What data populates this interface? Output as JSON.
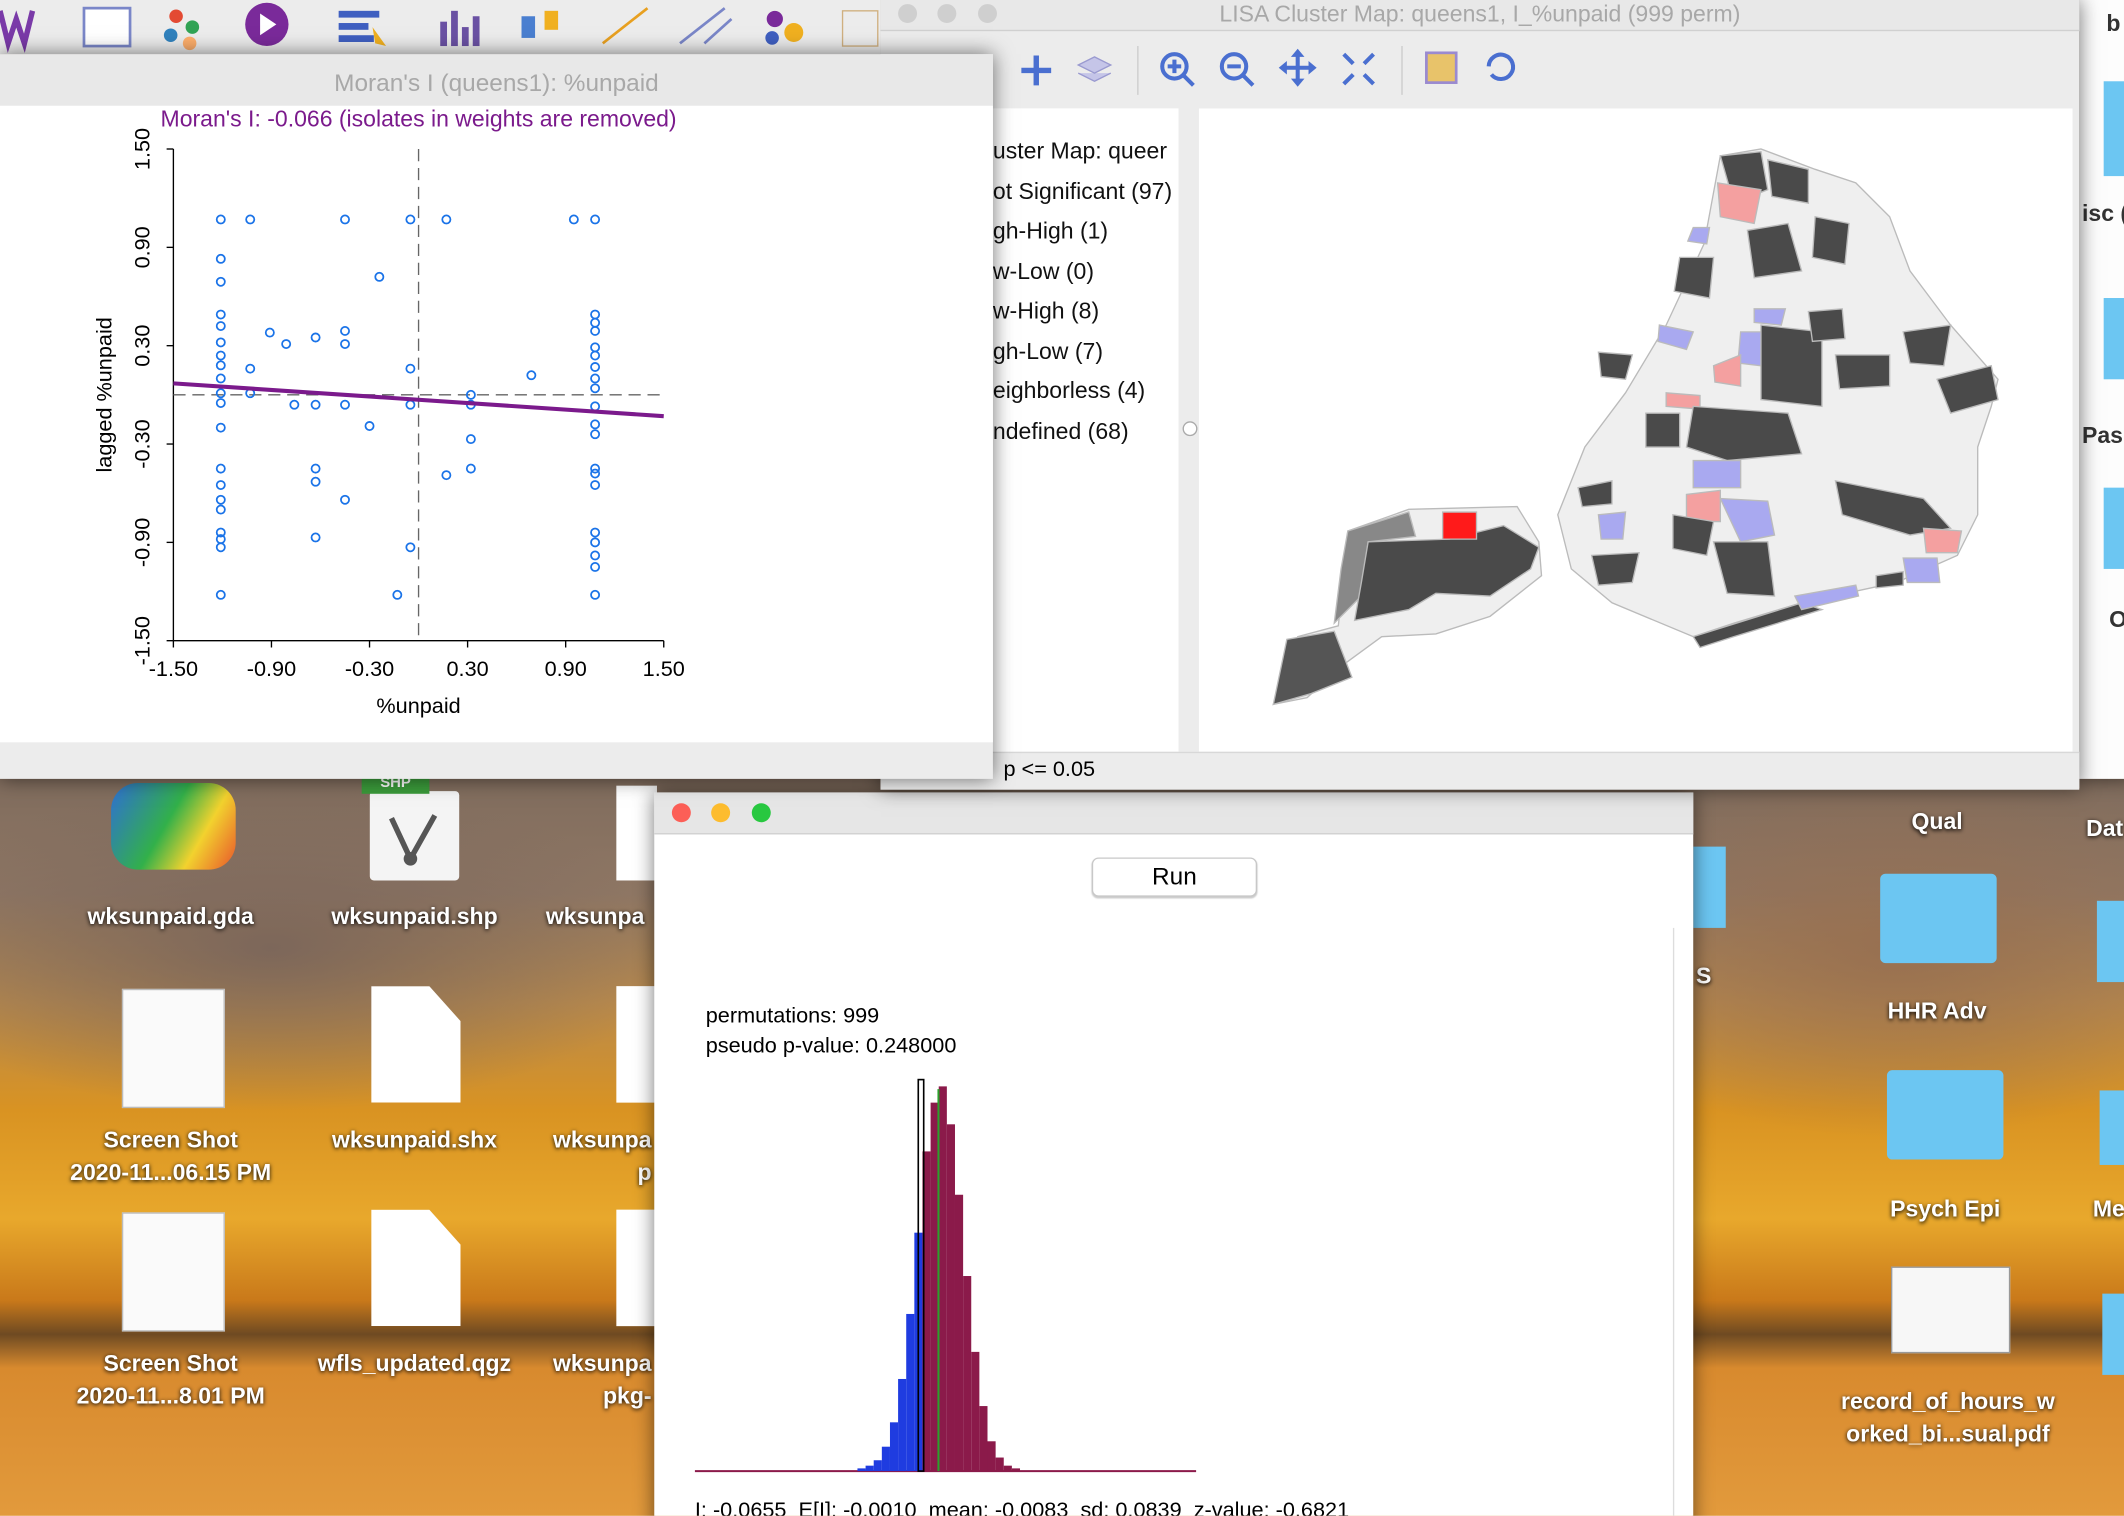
{
  "moran_window": {
    "title": "Moran's I (queens1): %unpaid"
  },
  "lisa_window": {
    "title": "LISA Cluster Map: queens1, I_%unpaid (999 perm)",
    "legend": [
      "uster Map: queer",
      "ot Significant (97)",
      "gh-High (1)",
      "w-Low (0)",
      "w-High (8)",
      "gh-Low (7)",
      "eighborless (4)",
      "ndefined (68)"
    ],
    "status": "5  p <= 0.05"
  },
  "histogram_window": {
    "button": "Run",
    "permutations": "permutations: 999",
    "p_value": "pseudo p-value: 0.248000",
    "stats": "I: -0.0655  E[I]: -0.0010  mean: -0.0083  sd: 0.0839  z-value: -0.6821"
  },
  "desktop": {
    "icons": [
      "wksunpaid.gda",
      "wksunpaid.shp",
      "wksunpa",
      "Screen Shot\n2020-11...06.15 PM",
      "wksunpaid.shx",
      "wksunpa\np",
      "Screen Shot\n2020-11...8.01 PM",
      "wfls_updated.qgz",
      "wksunpa\npkg-"
    ],
    "shp_badge": "SHP",
    "right_icons": [
      "Qual",
      "HHR Adv",
      "Psych Epi",
      "record_of_hours_w\norked_bi...sual.pdf",
      "Dat",
      "Me",
      "S"
    ],
    "side_window": [
      "b",
      "isc (",
      "Pas",
      "O"
    ]
  },
  "chart_data": [
    {
      "type": "scatter",
      "title": "Moran's I: -0.066 (isolates in weights are removed)",
      "x_label": "%unpaid",
      "y_label": "lagged %unpaid",
      "xlim": [
        -1.5,
        1.5
      ],
      "ylim": [
        -1.5,
        1.5
      ],
      "xticks": [
        {
          "value": -1.5,
          "label": "-1.50"
        },
        {
          "value": -0.9,
          "label": "-0.90"
        },
        {
          "value": -0.3,
          "label": "-0.30"
        },
        {
          "value": 0.3,
          "label": "0.30"
        },
        {
          "value": 0.9,
          "label": "0.90"
        },
        {
          "value": 1.5,
          "label": "1.50"
        }
      ],
      "yticks": [
        {
          "value": -1.5,
          "label": "-1.50"
        },
        {
          "value": -0.9,
          "label": "-0.90"
        },
        {
          "value": -0.3,
          "label": "-0.30"
        },
        {
          "value": 0.3,
          "label": "0.30"
        },
        {
          "value": 0.9,
          "label": "0.90"
        },
        {
          "value": 1.5,
          "label": "1.50"
        }
      ],
      "color": "#1a73e8",
      "x": [
        -1.21,
        -1.03,
        -0.45,
        -0.05,
        0.17,
        0.95,
        1.08,
        -1.21,
        -1.21,
        -0.24,
        -1.21,
        -1.21,
        -1.21,
        -1.21,
        -1.21,
        -1.21,
        -1.21,
        -1.21,
        -1.21,
        -0.91,
        -0.81,
        -0.63,
        -0.45,
        -0.45,
        -1.03,
        -0.05,
        0.69,
        1.08,
        1.08,
        1.08,
        1.08,
        1.08,
        1.08,
        1.08,
        1.08,
        1.08,
        1.08,
        1.08,
        1.08,
        1.08,
        1.08,
        1.08,
        1.08,
        1.08,
        1.08,
        1.08,
        -0.76,
        -0.63,
        -0.45,
        -0.05,
        0.32,
        0.32,
        -0.3,
        0.32,
        0.32,
        0.17,
        -0.63,
        -0.63,
        -0.45,
        -0.63,
        -1.21,
        -1.21,
        -1.21,
        -1.21,
        -1.21,
        -1.21,
        -1.21,
        -1.21,
        -0.05,
        -0.13,
        -1.03
      ],
      "values": [
        1.07,
        1.07,
        1.07,
        1.07,
        1.07,
        1.07,
        1.07,
        0.83,
        0.69,
        0.72,
        0.49,
        0.42,
        0.32,
        0.24,
        0.18,
        0.1,
        0.01,
        -0.05,
        -0.2,
        0.38,
        0.31,
        0.35,
        0.39,
        0.31,
        0.16,
        0.16,
        0.12,
        0.49,
        0.44,
        0.39,
        0.29,
        0.24,
        0.17,
        0.1,
        0.04,
        -0.07,
        -0.18,
        -0.24,
        -0.45,
        -0.48,
        -0.55,
        -0.84,
        -0.9,
        -0.98,
        -1.05,
        -1.22,
        -0.06,
        -0.06,
        -0.06,
        -0.06,
        0.0,
        -0.06,
        -0.19,
        -0.27,
        -0.45,
        -0.49,
        -0.45,
        -0.53,
        -0.64,
        -0.87,
        -0.45,
        -0.55,
        -0.64,
        -0.7,
        -0.84,
        -0.88,
        -0.93,
        -1.22,
        -0.93,
        -1.22,
        0.01
      ],
      "mean_lines": {
        "x": 0,
        "y": 0
      },
      "regression": {
        "color": "#7b1a8c",
        "x": [
          -1.5,
          1.5
        ],
        "y": [
          0.07,
          -0.13
        ]
      }
    },
    {
      "type": "histogram",
      "bins": [
        -0.3,
        -0.27,
        -0.24,
        -0.21,
        -0.18,
        -0.15,
        -0.12,
        -0.09,
        -0.06,
        -0.03,
        0.0,
        0.03,
        0.06,
        0.09,
        0.12,
        0.15,
        0.18,
        0.21,
        0.24,
        0.27,
        0.3
      ],
      "values": [
        1,
        2,
        4,
        9,
        18,
        34,
        58,
        88,
        118,
        136,
        142,
        128,
        102,
        72,
        44,
        24,
        11,
        5,
        2,
        1
      ],
      "colors": [
        "#1f3ce0",
        "#8b1a4a"
      ],
      "observed": -0.0655,
      "expected": -0.001,
      "expected_color": "#2ca02c"
    }
  ]
}
